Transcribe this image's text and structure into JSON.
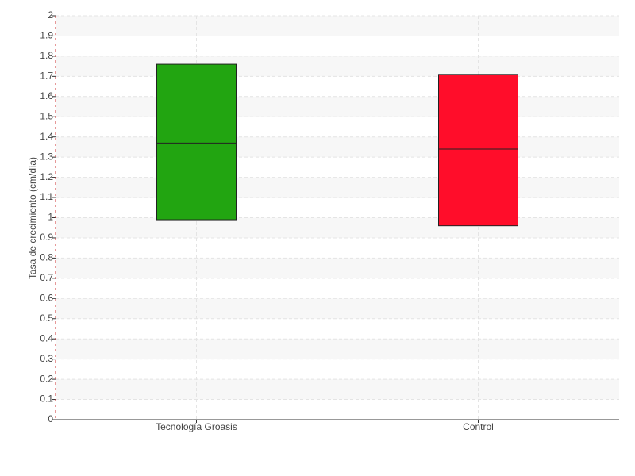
{
  "chart_data": {
    "type": "box",
    "y_label": "Tasa de crecimiento (cm/día)",
    "categories": [
      "Tecnología Groasis",
      "Control"
    ],
    "low": [
      0.99,
      0.96
    ],
    "median": [
      1.37,
      1.34
    ],
    "high": [
      1.76,
      1.71
    ],
    "colors": [
      "#22a511",
      "#ff0d2a"
    ],
    "ylim": [
      0,
      2
    ],
    "yticks": [
      0,
      0.1,
      0.2,
      0.3,
      0.4,
      0.5,
      0.6,
      0.7,
      0.8,
      0.9,
      1,
      1.1,
      1.2,
      1.3,
      1.4,
      1.5,
      1.6,
      1.7,
      1.8,
      1.9,
      2
    ],
    "grid": true
  }
}
